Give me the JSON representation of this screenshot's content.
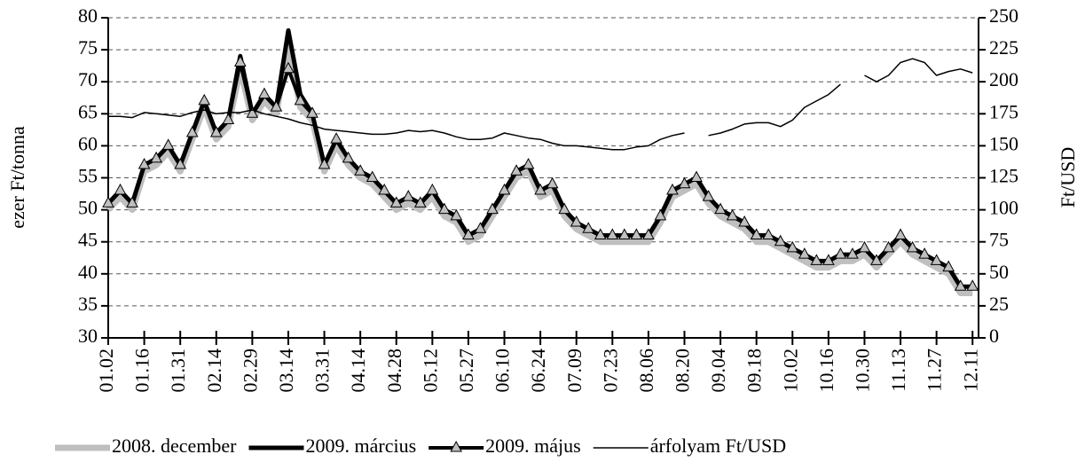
{
  "chart_data": {
    "type": "line",
    "y_label": "ezer Ft/tonna",
    "y2_label": "Ft/USD",
    "categories": [
      "01.02",
      null,
      null,
      "01.16",
      null,
      null,
      "01.31",
      null,
      null,
      "02.14",
      null,
      null,
      "02.29",
      null,
      null,
      "03.14",
      null,
      null,
      "03.31",
      null,
      null,
      "04.14",
      null,
      null,
      "04.28",
      null,
      null,
      "05.12",
      null,
      null,
      "05.27",
      null,
      null,
      "06.10",
      null,
      null,
      "06.24",
      null,
      null,
      "07.09",
      null,
      null,
      "07.23",
      null,
      null,
      "08.06",
      null,
      null,
      "08.20",
      null,
      null,
      "09.04",
      null,
      null,
      "09.18",
      null,
      null,
      "10.02",
      null,
      null,
      "10.16",
      null,
      null,
      "10.30",
      null,
      null,
      "11.13",
      null,
      null,
      "11.27",
      null,
      null,
      "12.11"
    ],
    "series": [
      {
        "name": "2008. december",
        "color": "#bfbfbf",
        "line_width": 7,
        "values": [
          50,
          52,
          50,
          56,
          57,
          59,
          56,
          61,
          66,
          61,
          63,
          72,
          64,
          67,
          65,
          76,
          66,
          64,
          56,
          60,
          57,
          55,
          54,
          52,
          50,
          51,
          50,
          52,
          49,
          48,
          45,
          46,
          49,
          52,
          55,
          56,
          52,
          53,
          49,
          47,
          46,
          45,
          45,
          45,
          45,
          45,
          48,
          52,
          53,
          54,
          51,
          49,
          48,
          47,
          45,
          45,
          44,
          43,
          42,
          41,
          41,
          42,
          42,
          43,
          41,
          43,
          45,
          43,
          42,
          41,
          40,
          37,
          37
        ]
      },
      {
        "name": "2009. március",
        "color": "#000000",
        "line_width": 5,
        "values": [
          51,
          53,
          51,
          57,
          58,
          60,
          57,
          62,
          67,
          62,
          64,
          74,
          65,
          68,
          66,
          78,
          68,
          65,
          57,
          61,
          58,
          56,
          55,
          53,
          51,
          52,
          51,
          53,
          50,
          49,
          46,
          47,
          50,
          53,
          56,
          57,
          53,
          54,
          50,
          48,
          47,
          46,
          46,
          46,
          46,
          46,
          49,
          53,
          54,
          55,
          52,
          50,
          49,
          48,
          46,
          46,
          45,
          44,
          43,
          42,
          42,
          43,
          43,
          44,
          42,
          44,
          46,
          44,
          43,
          42,
          41,
          38,
          38
        ]
      },
      {
        "name": "2009. május",
        "color": "#000000",
        "line_width": 4,
        "marker": "triangle",
        "values": [
          51,
          53,
          51,
          57,
          58,
          60,
          57,
          62,
          67,
          62,
          64,
          73,
          65,
          68,
          66,
          72,
          67,
          65,
          57,
          61,
          58,
          56,
          55,
          53,
          51,
          52,
          51,
          53,
          50,
          49,
          46,
          47,
          50,
          53,
          56,
          57,
          53,
          54,
          50,
          48,
          47,
          46,
          46,
          46,
          46,
          46,
          49,
          53,
          54,
          55,
          52,
          50,
          49,
          48,
          46,
          46,
          45,
          44,
          43,
          42,
          42,
          43,
          43,
          44,
          42,
          44,
          46,
          44,
          43,
          42,
          41,
          38,
          38
        ]
      },
      {
        "name": "árfolyam Ft/USD",
        "color": "#000000",
        "line_width": 1.5,
        "axis": "y2",
        "values": [
          173,
          173,
          172,
          176,
          175,
          174,
          173,
          176,
          178,
          175,
          176,
          176,
          178,
          175,
          173,
          171,
          168,
          166,
          163,
          162,
          161,
          160,
          159,
          159,
          160,
          162,
          161,
          162,
          160,
          157,
          155,
          155,
          156,
          160,
          158,
          156,
          155,
          152,
          150,
          150,
          149,
          148,
          147,
          147,
          149,
          150,
          155,
          158,
          160,
          null,
          158,
          160,
          163,
          167,
          168,
          168,
          165,
          170,
          180,
          185,
          190,
          198,
          null,
          205,
          200,
          205,
          215,
          218,
          215,
          205,
          208,
          210,
          207
        ]
      }
    ],
    "ylim": [
      30,
      80
    ],
    "yticks": [
      30,
      35,
      40,
      45,
      50,
      55,
      60,
      65,
      70,
      75,
      80
    ],
    "y2lim": [
      0,
      250
    ],
    "y2ticks": [
      0,
      25,
      50,
      75,
      100,
      125,
      150,
      175,
      200,
      225,
      250
    ],
    "grid": true,
    "legend": "bottom"
  }
}
